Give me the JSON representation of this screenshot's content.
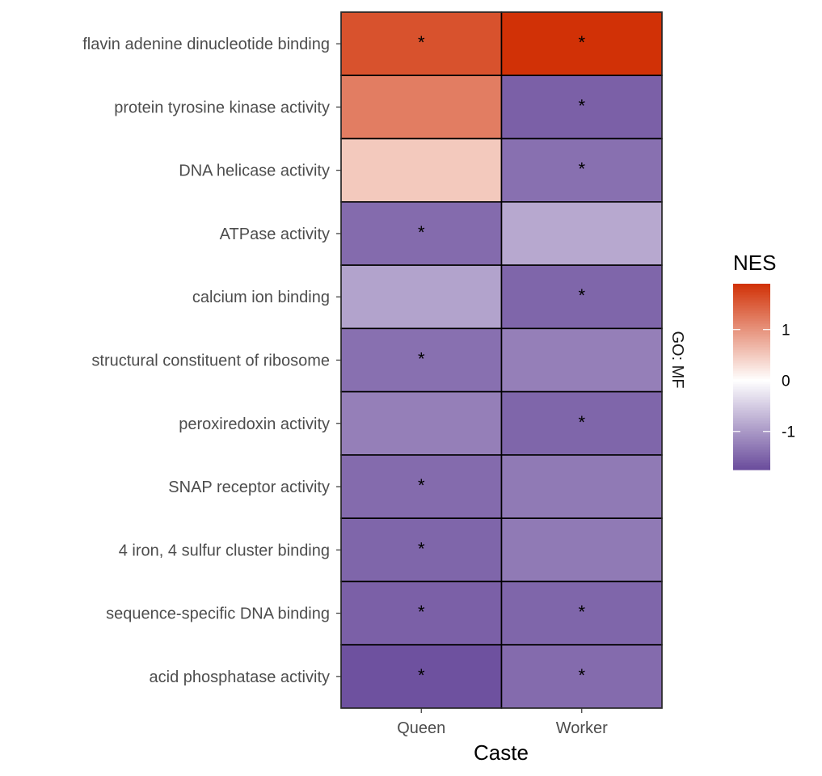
{
  "chart_data": {
    "type": "heatmap",
    "xlabel": "Caste",
    "ylabel": "",
    "facet_label": "GO: MF",
    "x": [
      "Queen",
      "Worker"
    ],
    "y": [
      "flavin adenine dinucleotide binding",
      "protein tyrosine kinase activity",
      "DNA helicase activity",
      "ATPase activity",
      "calcium ion binding",
      "structural constituent of ribosome",
      "peroxiredoxin activity",
      "SNAP receptor activity",
      "4 iron, 4 sulfur cluster binding",
      "sequence-specific DNA binding",
      "acid phosphatase activity"
    ],
    "values": [
      [
        1.6,
        1.9
      ],
      [
        1.2,
        -1.55
      ],
      [
        0.5,
        -1.4
      ],
      [
        -1.45,
        -0.85
      ],
      [
        -0.9,
        -1.5
      ],
      [
        -1.4,
        -1.25
      ],
      [
        -1.25,
        -1.5
      ],
      [
        -1.45,
        -1.3
      ],
      [
        -1.5,
        -1.3
      ],
      [
        -1.55,
        -1.5
      ],
      [
        -1.7,
        -1.45
      ]
    ],
    "significant": [
      [
        true,
        true
      ],
      [
        false,
        true
      ],
      [
        false,
        true
      ],
      [
        true,
        false
      ],
      [
        false,
        true
      ],
      [
        true,
        false
      ],
      [
        false,
        true
      ],
      [
        true,
        false
      ],
      [
        true,
        false
      ],
      [
        true,
        true
      ],
      [
        true,
        true
      ]
    ],
    "significance_marker": "*",
    "legend": {
      "title": "NES",
      "ticks": [
        1,
        0,
        -1
      ],
      "tick_labels": [
        "1",
        "0",
        "-1"
      ],
      "range": [
        -1.75,
        1.9
      ],
      "placement": "right",
      "low_color": "#6a4c9c",
      "mid_color": "#ffffff",
      "high_color": "#d13106"
    }
  }
}
